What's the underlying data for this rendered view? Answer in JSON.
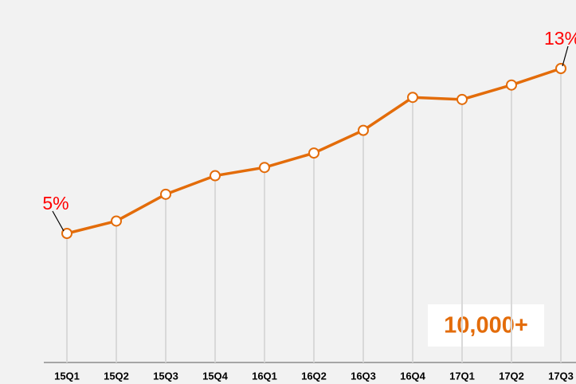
{
  "chart_data": {
    "type": "line",
    "categories": [
      "15Q1",
      "15Q2",
      "15Q3",
      "15Q4",
      "16Q1",
      "16Q2",
      "16Q3",
      "16Q4",
      "17Q1",
      "17Q2",
      "17Q3"
    ],
    "values": [
      5,
      5.6,
      6.9,
      7.8,
      8.2,
      8.9,
      10.0,
      11.6,
      11.5,
      12.2,
      13
    ],
    "value_labels": [
      "5%",
      null,
      null,
      null,
      null,
      null,
      null,
      null,
      null,
      null,
      "13%"
    ],
    "color": "#e36c0a",
    "annotation": "10,000+"
  }
}
